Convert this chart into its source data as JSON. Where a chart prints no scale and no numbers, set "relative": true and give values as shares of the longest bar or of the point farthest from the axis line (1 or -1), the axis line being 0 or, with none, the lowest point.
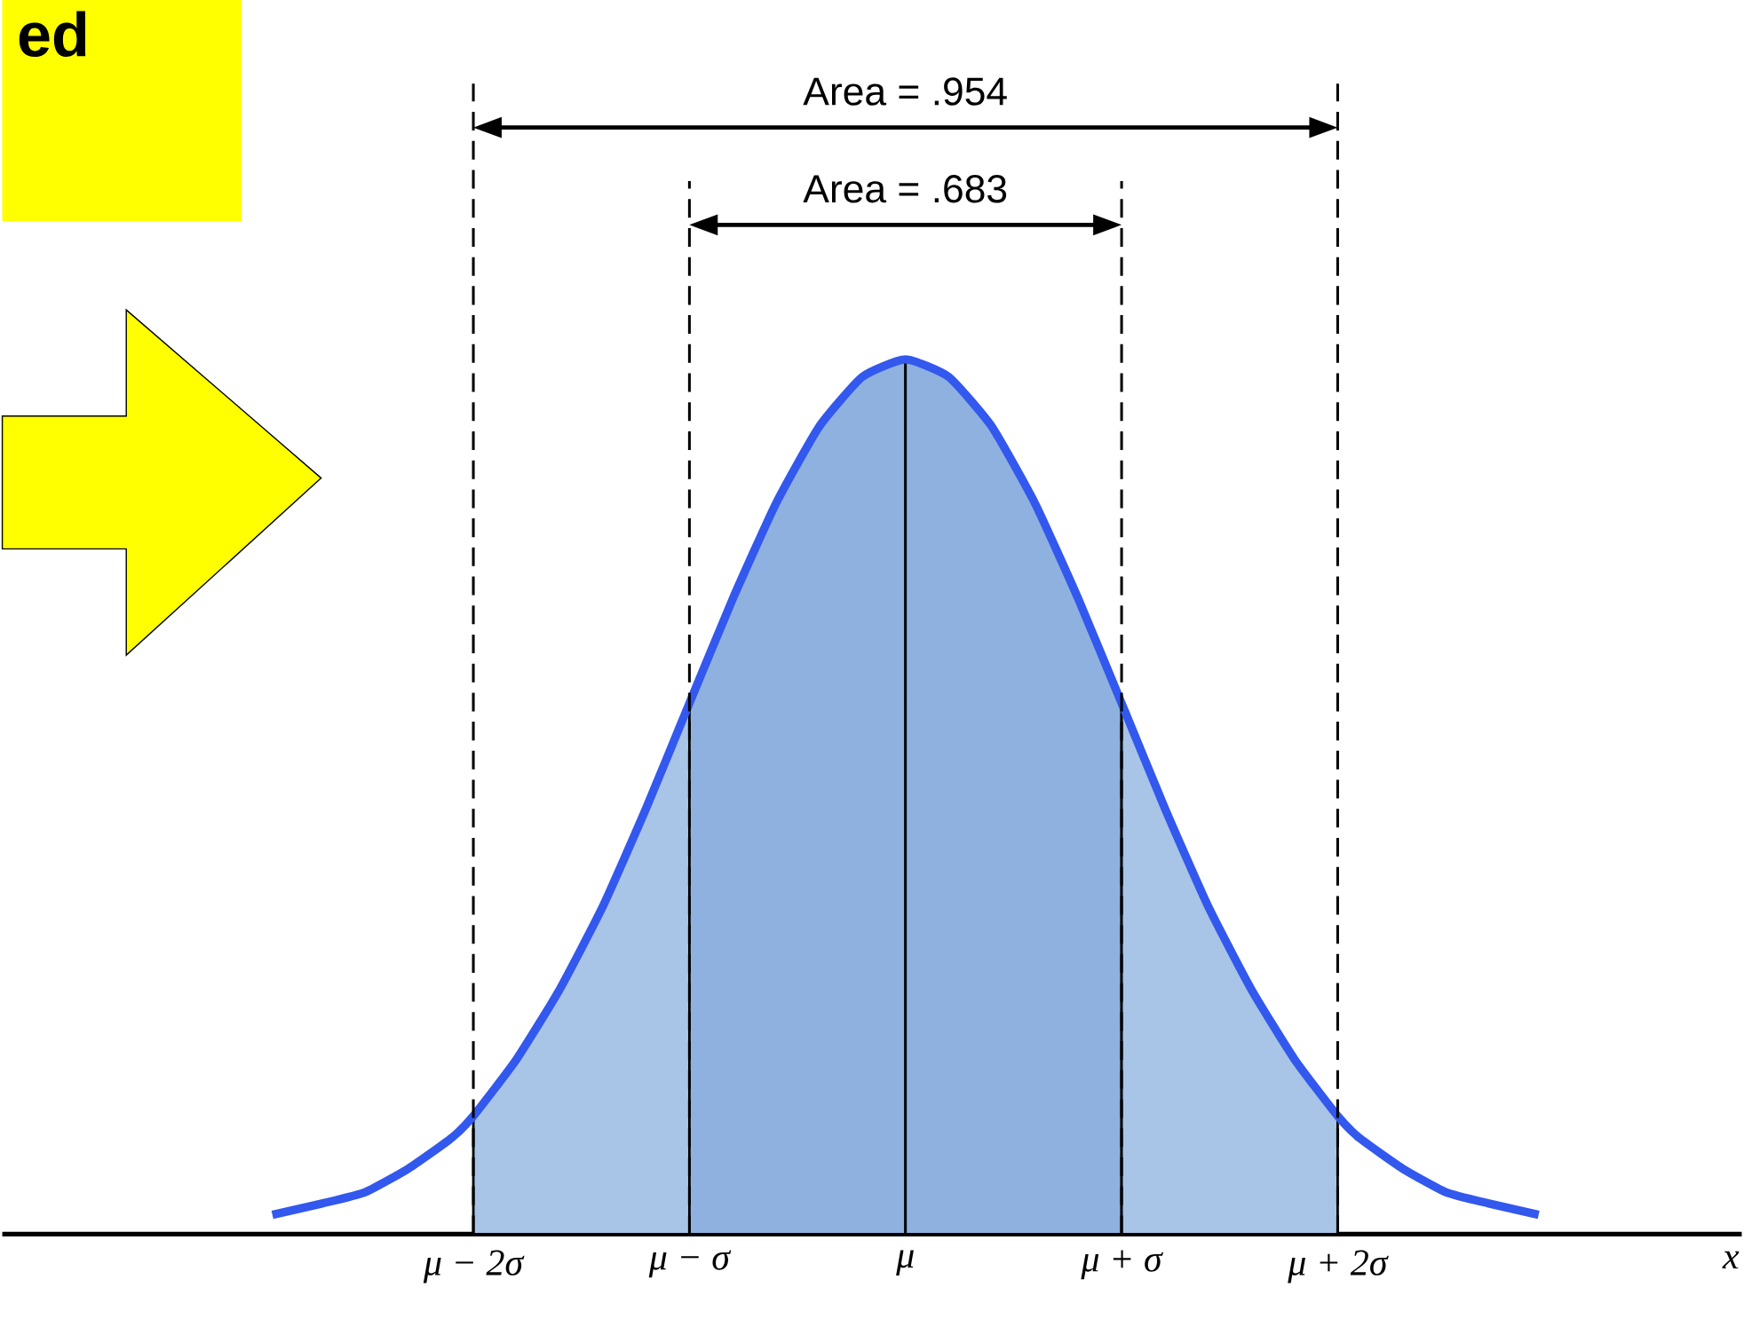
{
  "chart_data": {
    "type": "line",
    "relative": true,
    "xlabel": "x",
    "tick_labels": "x",
    "xlim": [
      -4.18,
      3.87
    ],
    "xticks": [
      {
        "value": -2,
        "label": "μ − 2σ"
      },
      {
        "value": -1,
        "label": "μ − σ"
      },
      {
        "value": 0,
        "label": "μ"
      },
      {
        "value": 1,
        "label": "μ + σ"
      },
      {
        "value": 2,
        "label": "μ + 2σ"
      }
    ],
    "series": [
      {
        "type": "area",
        "color": "#a8c4e6",
        "x": [
          -2,
          -1.8,
          -1.6,
          -1.4,
          -1.2,
          -1
        ],
        "values": [
          0.135,
          0.2,
          0.28,
          0.375,
          0.487,
          0.607
        ]
      },
      {
        "type": "area",
        "color": "#8fb1df",
        "x": [
          -1,
          -0.8,
          -0.6,
          -0.4,
          -0.2,
          0
        ],
        "values": [
          0.607,
          0.726,
          0.835,
          0.923,
          0.98,
          1
        ]
      },
      {
        "type": "area",
        "color": "#8fb1df",
        "x": [
          0,
          0.2,
          0.4,
          0.6,
          0.8,
          1
        ],
        "values": [
          1,
          0.98,
          0.923,
          0.835,
          0.726,
          0.607
        ]
      },
      {
        "type": "area",
        "color": "#a8c4e6",
        "x": [
          1,
          1.2,
          1.4,
          1.6,
          1.8,
          2
        ],
        "values": [
          0.607,
          0.487,
          0.375,
          0.28,
          0.2,
          0.135
        ]
      },
      {
        "color": "#3358ee",
        "x": [
          -2.93,
          -2.7,
          -2.5,
          -2.3,
          -2.1,
          -2,
          -1.8,
          -1.6,
          -1.4,
          -1.2,
          -1,
          -0.8,
          -0.6,
          -0.4,
          -0.2,
          0,
          0.2,
          0.4,
          0.6,
          0.8,
          1,
          1.2,
          1.4,
          1.6,
          1.8,
          2,
          2.1,
          2.3,
          2.5,
          2.7,
          2.93
        ],
        "values": [
          0.022,
          0.035,
          0.048,
          0.075,
          0.11,
          0.135,
          0.2,
          0.28,
          0.375,
          0.487,
          0.607,
          0.726,
          0.835,
          0.923,
          0.98,
          1,
          0.98,
          0.923,
          0.835,
          0.726,
          0.607,
          0.487,
          0.375,
          0.28,
          0.2,
          0.135,
          0.11,
          0.075,
          0.048,
          0.035,
          0.022
        ]
      }
    ],
    "ref_lines": [
      {
        "axis": "x",
        "value": -2,
        "color": "#000000",
        "line_style": "dashed"
      },
      {
        "axis": "x",
        "value": 2,
        "color": "#000000",
        "line_style": "dashed"
      },
      {
        "axis": "x",
        "value": -1,
        "color": "#000000",
        "line_style": "dashed"
      },
      {
        "axis": "x",
        "value": 1,
        "color": "#000000",
        "line_style": "dashed"
      }
    ],
    "annotations": [
      "Area = .954",
      "Area = .683",
      "ed"
    ]
  }
}
